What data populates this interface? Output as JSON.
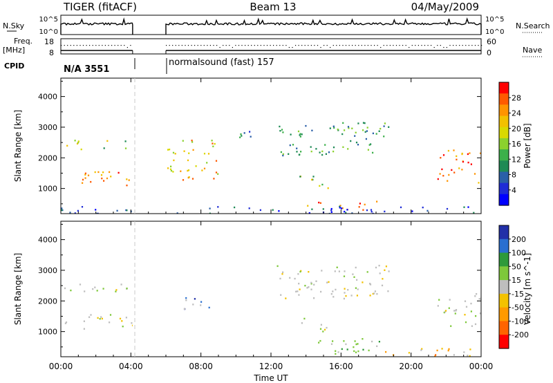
{
  "header": {
    "title_left": "TIGER (fitACF)",
    "title_center": "Beam 13",
    "title_right": "04/May/2009"
  },
  "strips": {
    "nsky_label": "N.Sky",
    "nsearch_label": "N.Search",
    "nsky_ticks": [
      "10^5",
      "10^0"
    ],
    "nsearch_ticks": [
      "10^5",
      "10^0"
    ],
    "freq_label": "Freq.",
    "freq_unit": "[MHz]",
    "freq_ticks": [
      "18",
      "8"
    ],
    "nave_label": "Nave",
    "nave_ticks": [
      "60",
      "0"
    ],
    "cpid_label": "CPID",
    "cpid_segments": [
      "N/A 3551",
      "normalsound (fast) 157"
    ]
  },
  "chart_data": [
    {
      "type": "heatmap",
      "panel": "power",
      "ylabel": "Slant Range [km]",
      "xlabel": "",
      "ylim": [
        180,
        4600
      ],
      "yticks": [
        1000,
        2000,
        3000,
        4000
      ],
      "xlim_hours": [
        0,
        24
      ],
      "colorbar_label": "Power [dB]",
      "colorbar_ticks": [
        "28",
        "24",
        "20",
        "16",
        "12",
        "8",
        "4"
      ],
      "colorbar_colors": [
        "#ff0000",
        "#ff5a00",
        "#ff9400",
        "#f2c100",
        "#d9d900",
        "#8bd12e",
        "#3cb04a",
        "#1f8a55",
        "#2a5fa8",
        "#1f2cd6",
        "#0000ff"
      ],
      "data_gaps_hours": [
        [
          4.1,
          6.0
        ]
      ],
      "echo_regions": [
        {
          "t": [
            0.0,
            4.1
          ],
          "range_km": [
            1100,
            1600
          ],
          "level": "high"
        },
        {
          "t": [
            0.0,
            4.1
          ],
          "range_km": [
            2300,
            2600
          ],
          "level": "medium"
        },
        {
          "t": [
            6.0,
            9.0
          ],
          "range_km": [
            1300,
            2600
          ],
          "level": "medium-high"
        },
        {
          "t": [
            10.0,
            11.0
          ],
          "range_km": [
            2400,
            2900
          ],
          "level": "low"
        },
        {
          "t": [
            12.3,
            18.8
          ],
          "range_km": [
            2100,
            3200
          ],
          "level": "low-medium"
        },
        {
          "t": [
            13.6,
            15.3
          ],
          "range_km": [
            1000,
            1500
          ],
          "level": "medium"
        },
        {
          "t": [
            14.0,
            18.3
          ],
          "range_km": [
            300,
            600
          ],
          "level": "high"
        },
        {
          "t": [
            21.5,
            24.0
          ],
          "range_km": [
            1200,
            2300
          ],
          "level": "high"
        },
        {
          "t": [
            0.0,
            24.0
          ],
          "range_km": [
            180,
            450
          ],
          "level": "ground-scatter"
        }
      ]
    },
    {
      "type": "heatmap",
      "panel": "velocity",
      "ylabel": "Slant Range [km]",
      "xlabel": "Time UT",
      "ylim": [
        180,
        4600
      ],
      "yticks": [
        1000,
        2000,
        3000,
        4000
      ],
      "xticks": [
        "00:00",
        "04:00",
        "08:00",
        "12:00",
        "16:00",
        "20:00",
        "00:00"
      ],
      "xlim_hours": [
        0,
        24
      ],
      "colorbar_label": "Velocity [m s^-1]",
      "colorbar_ticks": [
        "200",
        "100",
        "50",
        "15",
        "-15",
        "-50",
        "-100",
        "-200"
      ],
      "colorbar_colors": [
        "#2230a8",
        "#2a6fd0",
        "#2e9a3a",
        "#7ec83a",
        "#bebebe",
        "#f3c200",
        "#ff9a00",
        "#ff6400",
        "#ff0000"
      ],
      "data_gaps_hours": [
        [
          4.1,
          6.0
        ]
      ],
      "echo_regions": [
        {
          "t": [
            0.0,
            4.1
          ],
          "range_km": [
            1100,
            1600
          ],
          "level": "grey"
        },
        {
          "t": [
            0.0,
            4.1
          ],
          "range_km": [
            2300,
            2600
          ],
          "level": "grey"
        },
        {
          "t": [
            7.0,
            8.6
          ],
          "range_km": [
            1700,
            2200
          ],
          "level": "blue"
        },
        {
          "t": [
            12.3,
            18.8
          ],
          "range_km": [
            2100,
            3200
          ],
          "level": "grey"
        },
        {
          "t": [
            13.6,
            15.3
          ],
          "range_km": [
            1000,
            1500
          ],
          "level": "grey"
        },
        {
          "t": [
            14.0,
            18.5
          ],
          "range_km": [
            300,
            800
          ],
          "level": "green"
        },
        {
          "t": [
            18.5,
            24.0
          ],
          "range_km": [
            200,
            500
          ],
          "level": "orange"
        },
        {
          "t": [
            21.5,
            24.0
          ],
          "range_km": [
            1200,
            2300
          ],
          "level": "grey"
        }
      ]
    }
  ]
}
